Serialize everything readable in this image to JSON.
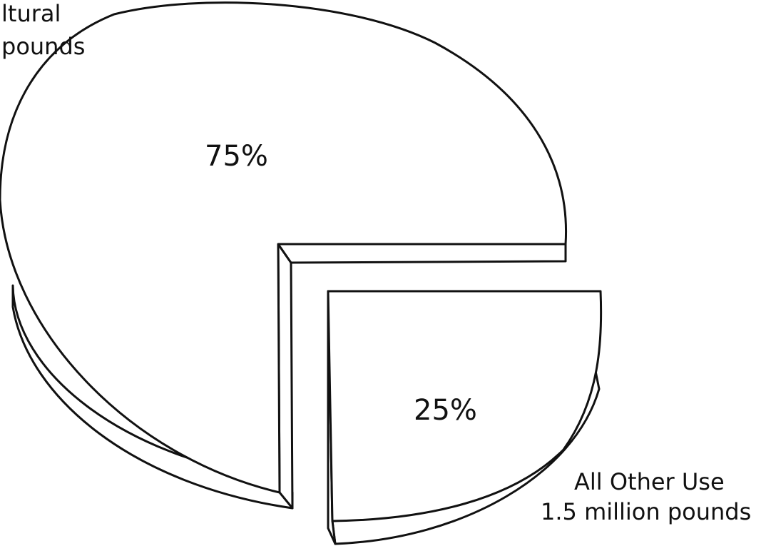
{
  "chart_data": {
    "type": "pie",
    "style": "3d-exploded",
    "slices": [
      {
        "name_lines": [
          "ltural",
          "pounds"
        ],
        "value": 75,
        "value_label": "75%"
      },
      {
        "name_lines": [
          "All Other Use",
          "1.5 million pounds"
        ],
        "value": 25,
        "value_label": "25%"
      }
    ]
  },
  "colors": {
    "stroke": "#111111",
    "fill": "#ffffff"
  }
}
